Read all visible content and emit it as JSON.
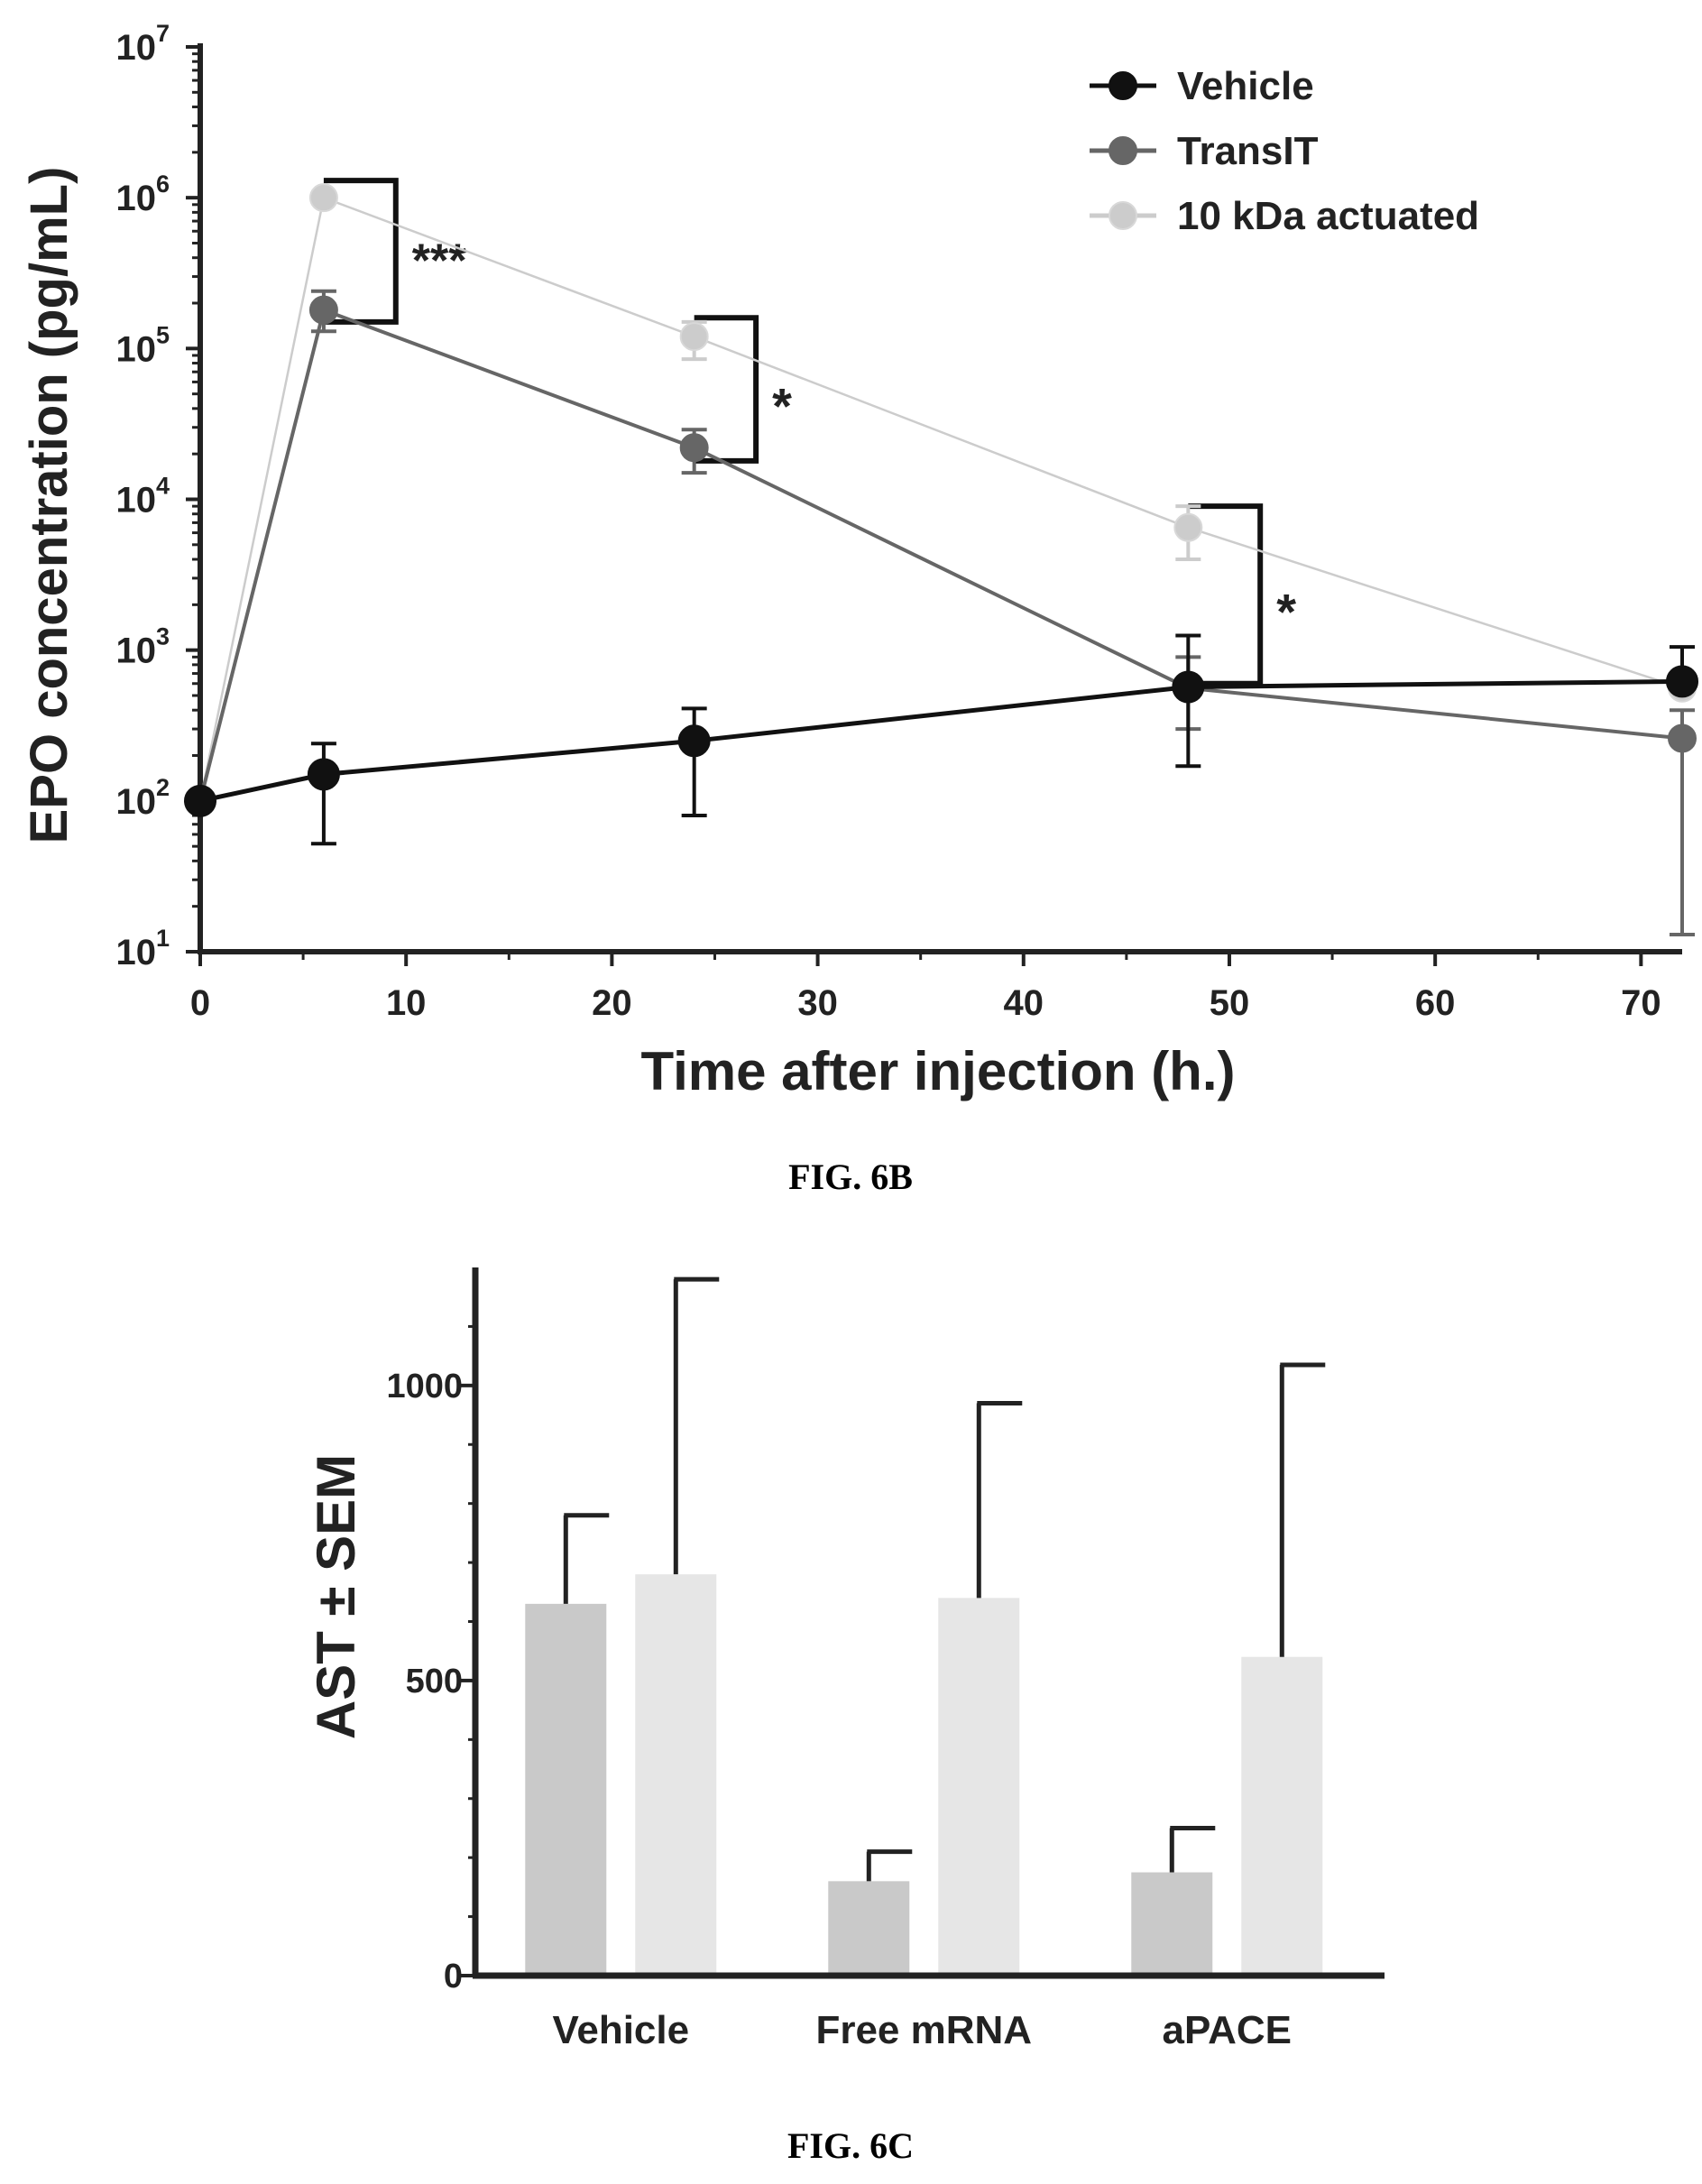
{
  "chart_data": [
    {
      "type": "line",
      "title": "",
      "xlabel": "Time after injection (h.)",
      "ylabel": "EPO concentration (pg/mL)",
      "yscale": "log",
      "xlim": [
        0,
        72
      ],
      "ylim": [
        10,
        10000000
      ],
      "xticks": [
        "0",
        "10",
        "20",
        "30",
        "40",
        "50",
        "60",
        "70"
      ],
      "yticks": [
        {
          "base": "10",
          "exp": "1"
        },
        {
          "base": "10",
          "exp": "2"
        },
        {
          "base": "10",
          "exp": "3"
        },
        {
          "base": "10",
          "exp": "4"
        },
        {
          "base": "10",
          "exp": "5"
        },
        {
          "base": "10",
          "exp": "6"
        },
        {
          "base": "10",
          "exp": "7"
        }
      ],
      "legend_position": "top-right",
      "series": [
        {
          "name": "Vehicle",
          "color": "#111111",
          "points": [
            {
              "x": 0,
              "y": 100,
              "lo": 100,
              "hi": 100
            },
            {
              "x": 6,
              "y": 150,
              "lo": 52,
              "hi": 240
            },
            {
              "x": 24,
              "y": 250,
              "lo": 80,
              "hi": 410
            },
            {
              "x": 48,
              "y": 570,
              "lo": 170,
              "hi": 1250
            },
            {
              "x": 72,
              "y": 620,
              "lo": 620,
              "hi": 1050
            }
          ]
        },
        {
          "name": "TransIT",
          "color": "#666666",
          "points": [
            {
              "x": 0,
              "y": 100,
              "lo": 100,
              "hi": 100
            },
            {
              "x": 6,
              "y": 180000,
              "lo": 130000,
              "hi": 240000
            },
            {
              "x": 24,
              "y": 22000,
              "lo": 15000,
              "hi": 29000
            },
            {
              "x": 48,
              "y": 560,
              "lo": 300,
              "hi": 900
            },
            {
              "x": 72,
              "y": 260,
              "lo": 13,
              "hi": 400
            }
          ]
        },
        {
          "name": "10 kDa actuated",
          "color": "#cccccc",
          "points": [
            {
              "x": 0,
              "y": 100,
              "lo": 100,
              "hi": 100
            },
            {
              "x": 6,
              "y": 1000000,
              "lo": 1000000,
              "hi": 1000000
            },
            {
              "x": 24,
              "y": 120000,
              "lo": 85000,
              "hi": 150000
            },
            {
              "x": 48,
              "y": 6500,
              "lo": 4000,
              "hi": 9000
            },
            {
              "x": 72,
              "y": 560,
              "lo": 560,
              "hi": 560
            }
          ]
        }
      ],
      "annotations": [
        {
          "text": "***",
          "x_from": 6,
          "x_to": 9.5,
          "y_from": 1300000,
          "y_to": 150000
        },
        {
          "text": "*",
          "x_from": 24,
          "x_to": 27,
          "y_from": 160000,
          "y_to": 18000
        },
        {
          "text": "*",
          "x_from": 48,
          "x_to": 51.5,
          "y_from": 9000,
          "y_to": 600
        }
      ],
      "caption": "FIG. 6B"
    },
    {
      "type": "bar",
      "title": "",
      "xlabel": "",
      "ylabel": "AST ± SEM",
      "ylim": [
        0,
        1200
      ],
      "yticks": [
        "0",
        "500",
        "1000"
      ],
      "categories": [
        "Vehicle",
        "Free mRNA",
        "aPACE"
      ],
      "bar_colors": [
        "#c9c9c9",
        "#e6e6e6"
      ],
      "series": [
        {
          "values": [
            630,
            160,
            175
          ],
          "err": [
            780,
            210,
            250
          ]
        },
        {
          "values": [
            680,
            640,
            540
          ],
          "err": [
            1180,
            970,
            1035
          ]
        }
      ],
      "caption": "FIG. 6C"
    }
  ]
}
